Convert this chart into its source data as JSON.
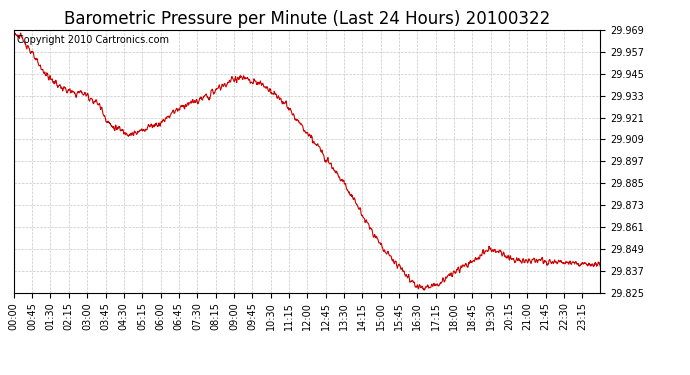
{
  "title": "Barometric Pressure per Minute (Last 24 Hours) 20100322",
  "copyright": "Copyright 2010 Cartronics.com",
  "line_color": "#cc0000",
  "background_color": "#ffffff",
  "grid_color": "#c8c8c8",
  "ylim": [
    29.825,
    29.969
  ],
  "yticks": [
    29.825,
    29.837,
    29.849,
    29.861,
    29.873,
    29.885,
    29.897,
    29.909,
    29.921,
    29.933,
    29.945,
    29.957,
    29.969
  ],
  "xtick_labels": [
    "00:00",
    "00:45",
    "01:30",
    "02:15",
    "03:00",
    "03:45",
    "04:30",
    "05:15",
    "06:00",
    "06:45",
    "07:30",
    "08:15",
    "09:00",
    "09:45",
    "10:30",
    "11:15",
    "12:00",
    "12:45",
    "13:30",
    "14:15",
    "15:00",
    "15:45",
    "16:30",
    "17:15",
    "18:00",
    "18:45",
    "19:30",
    "20:15",
    "21:00",
    "21:45",
    "22:30",
    "23:15"
  ],
  "title_fontsize": 12,
  "copyright_fontsize": 7,
  "tick_fontsize": 7,
  "keypoints_x": [
    0,
    30,
    60,
    90,
    120,
    150,
    165,
    180,
    210,
    225,
    240,
    255,
    270,
    300,
    315,
    330,
    360,
    390,
    420,
    450,
    480,
    495,
    510,
    525,
    540,
    555,
    570,
    585,
    600,
    615,
    630,
    660,
    690,
    720,
    750,
    780,
    810,
    840,
    870,
    900,
    930,
    945,
    960,
    975,
    990,
    1005,
    1020,
    1035,
    1050,
    1080,
    1110,
    1140,
    1155,
    1170,
    1185,
    1200,
    1215,
    1230,
    1260,
    1290,
    1320,
    1350,
    1380,
    1410,
    1439
  ],
  "keypoints_y": [
    29.968,
    29.962,
    29.95,
    29.942,
    29.937,
    29.934,
    29.935,
    29.933,
    29.928,
    29.921,
    29.916,
    29.915,
    29.913,
    29.912,
    29.914,
    29.916,
    29.918,
    29.924,
    29.928,
    29.93,
    29.933,
    29.936,
    29.938,
    29.94,
    29.942,
    29.943,
    29.942,
    29.94,
    29.94,
    29.938,
    29.936,
    29.93,
    29.921,
    29.912,
    29.904,
    29.895,
    29.885,
    29.874,
    29.862,
    29.851,
    29.843,
    29.84,
    29.836,
    29.831,
    29.829,
    29.828,
    29.828,
    29.829,
    29.831,
    29.836,
    29.84,
    29.844,
    29.847,
    29.849,
    29.848,
    29.846,
    29.844,
    29.843,
    29.842,
    29.843,
    29.841,
    29.842,
    29.841,
    29.84,
    29.84
  ]
}
